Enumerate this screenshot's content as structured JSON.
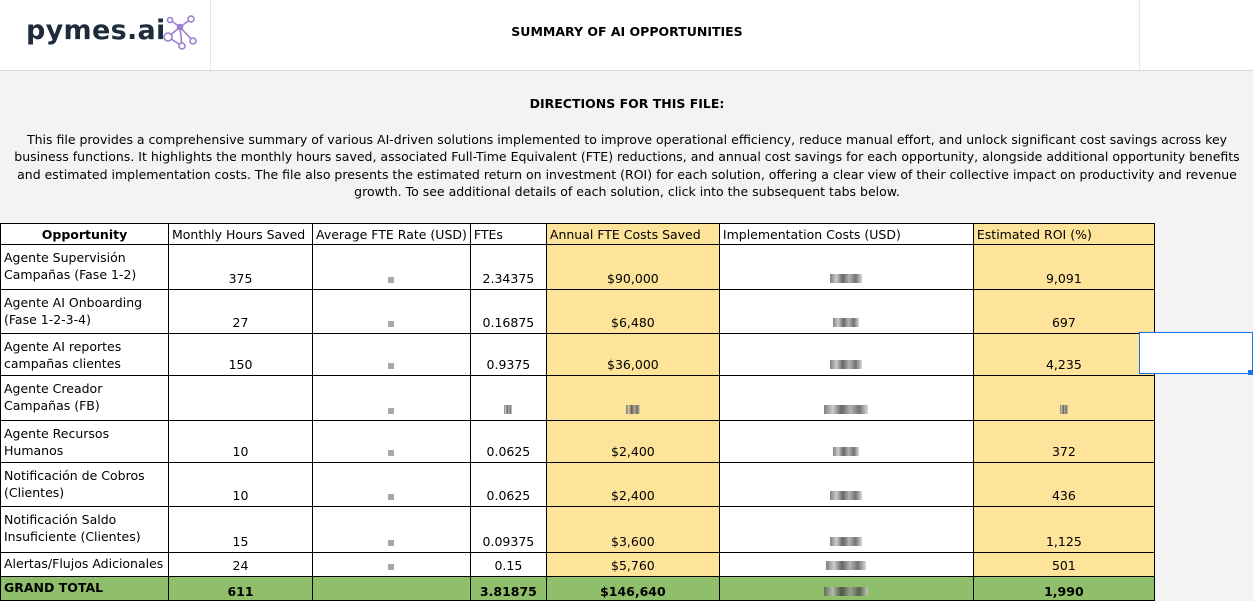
{
  "logo": {
    "brand": "pymes.ai"
  },
  "sheet": {
    "title": "SUMMARY OF AI OPPORTUNITIES",
    "directions_title": "DIRECTIONS FOR THIS FILE:",
    "directions_text": "This file provides a comprehensive summary of various AI-driven solutions implemented to improve operational efficiency, reduce manual effort, and unlock significant cost savings across key business functions. It highlights the monthly hours saved, associated Full-Time Equivalent (FTE) reductions, and annual cost savings for each opportunity, alongside additional opportunity benefits and estimated implementation costs. The file also presents the estimated return on investment (ROI) for each solution, offering a clear view of their collective impact on productivity and revenue growth. To see additional details of each solution, click into the subsequent tabs below."
  },
  "table": {
    "headers": {
      "opportunity": "Opportunity",
      "hours": "Monthly Hours Saved",
      "rate": "Average FTE Rate (USD)",
      "ftes": "FTEs",
      "annual": "Annual FTE Costs Saved",
      "impl": "Implementation Costs (USD)",
      "roi": "Estimated ROI (%)"
    },
    "rows": [
      {
        "opportunity": "Agente Supervisión Campañas (Fase 1-2)",
        "hours": "375",
        "ftes": "2.34375",
        "annual": "$90,000",
        "roi": "9,091"
      },
      {
        "opportunity": "Agente AI Onboarding (Fase 1-2-3-4)",
        "hours": "27",
        "ftes": "0.16875",
        "annual": "$6,480",
        "roi": "697"
      },
      {
        "opportunity": "Agente AI reportes campañas clientes",
        "hours": "150",
        "ftes": "0.9375",
        "annual": "$36,000",
        "roi": "4,235"
      },
      {
        "opportunity": "Agente Creador Campañas (FB)",
        "hours": "",
        "ftes": "",
        "annual": "",
        "roi": ""
      },
      {
        "opportunity": "Agente Recursos Humanos",
        "hours": "10",
        "ftes": "0.0625",
        "annual": "$2,400",
        "roi": "372"
      },
      {
        "opportunity": "Notificación de Cobros (Clientes)",
        "hours": "10",
        "ftes": "0.0625",
        "annual": "$2,400",
        "roi": "436"
      },
      {
        "opportunity": "Notificación Saldo Insuficiente (Clientes)",
        "hours": "15",
        "ftes": "0.09375",
        "annual": "$3,600",
        "roi": "1,125"
      },
      {
        "opportunity": "Alertas/Flujos  Adicionales",
        "hours": "24",
        "ftes": "0.15",
        "annual": "$5,760",
        "roi": "501"
      }
    ],
    "total": {
      "label": "GRAND TOTAL",
      "hours": "611",
      "ftes": "3.81875",
      "annual": "$146,640",
      "roi": "1,990"
    }
  },
  "colors": {
    "yellow_column": "#fde49a",
    "total_row": "#8fbf6a",
    "selection": "#1a73e8"
  },
  "icons": {
    "logo_mark": "network-nodes-icon"
  }
}
